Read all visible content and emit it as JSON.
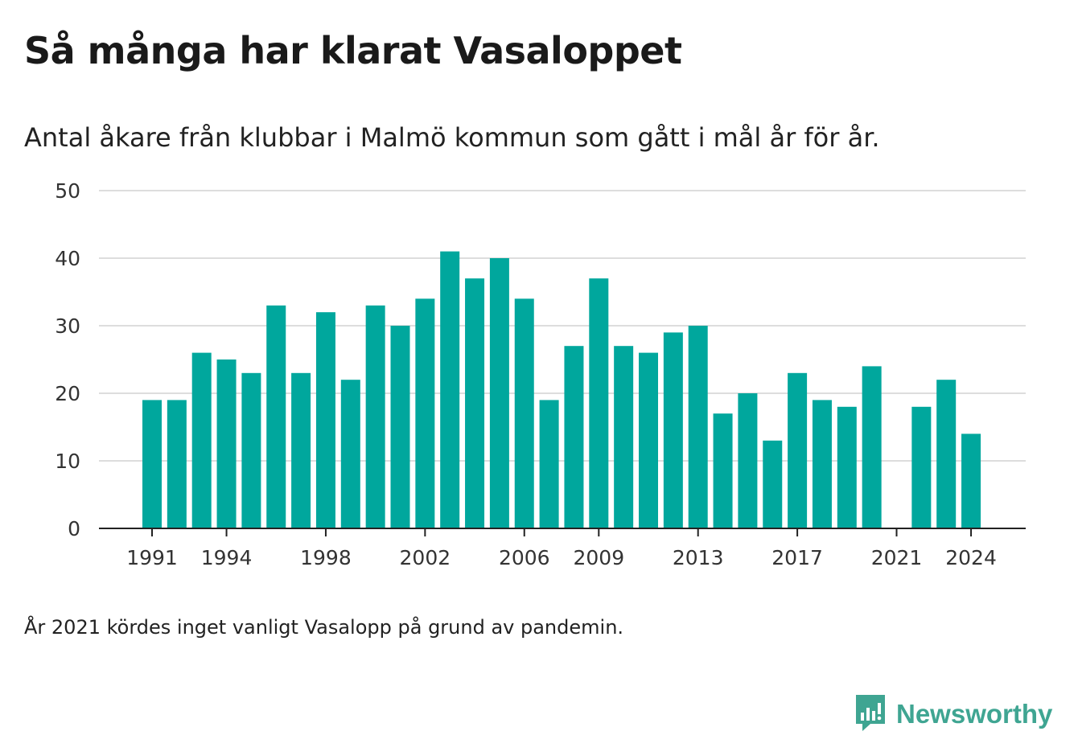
{
  "chart_data": {
    "type": "bar",
    "title": "Så många har klarat Vasaloppet",
    "subtitle": "Antal åkare från klubbar i Malmö kommun som gått i mål år för år.",
    "categories": [
      1991,
      1992,
      1993,
      1994,
      1995,
      1996,
      1997,
      1998,
      1999,
      2000,
      2001,
      2002,
      2003,
      2004,
      2005,
      2006,
      2007,
      2008,
      2009,
      2010,
      2011,
      2012,
      2013,
      2014,
      2015,
      2016,
      2017,
      2018,
      2019,
      2020,
      2021,
      2022,
      2023,
      2024
    ],
    "values": [
      19,
      19,
      26,
      25,
      23,
      33,
      23,
      32,
      22,
      33,
      30,
      34,
      41,
      37,
      40,
      34,
      19,
      27,
      37,
      27,
      26,
      29,
      30,
      17,
      20,
      13,
      23,
      19,
      18,
      24,
      null,
      18,
      22,
      14
    ],
    "x_tick_labels": [
      "1991",
      "1994",
      "1998",
      "2002",
      "2006",
      "2009",
      "2013",
      "2017",
      "2021",
      "2024"
    ],
    "y_tick_labels": [
      "0",
      "10",
      "20",
      "30",
      "40",
      "50"
    ],
    "ylim": [
      0,
      50
    ],
    "grid": "horizontal",
    "bar_color": "#00a79d",
    "footnote": "År 2021 kördes inget vanligt Vasalopp på grund av pandemin."
  },
  "brand": {
    "name": "Newsworthy",
    "icon": "newsworthy-logo-icon",
    "color": "#3fa592"
  }
}
